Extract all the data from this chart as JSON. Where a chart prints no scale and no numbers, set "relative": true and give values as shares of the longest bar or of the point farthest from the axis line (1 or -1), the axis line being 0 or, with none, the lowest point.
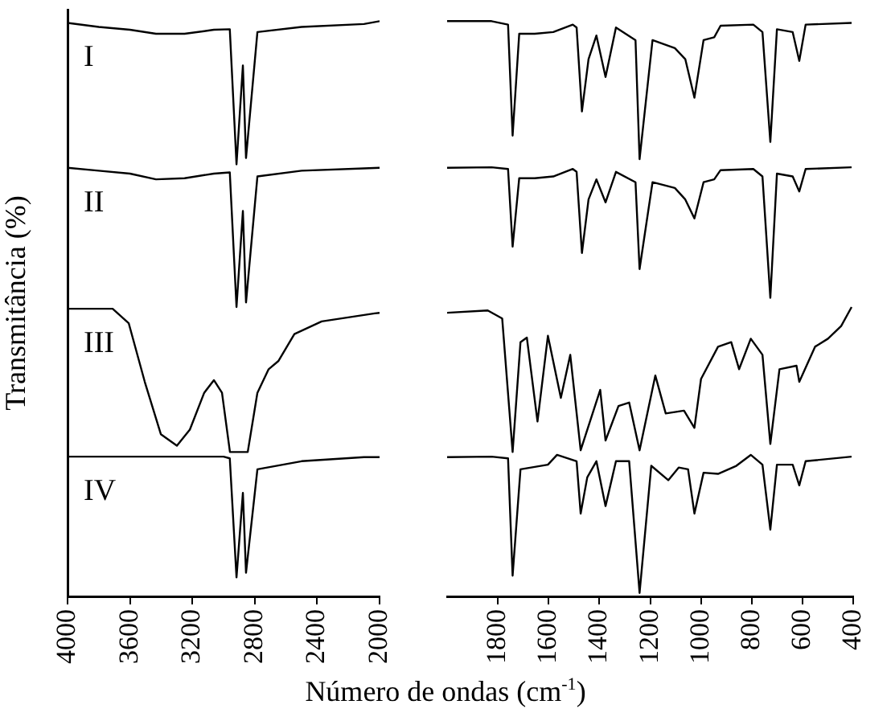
{
  "chart_data": [
    {
      "type": "line",
      "relative": true,
      "xlabel": "Número de ondas (cm$^{-1}$)",
      "ylabel": "Transmitância (%)",
      "xlim": [
        4000,
        2000
      ],
      "xticks": [
        4000,
        3600,
        3200,
        2800,
        2400,
        2000
      ],
      "marker": "none",
      "series": [
        {
          "name": "I",
          "color": "#000000",
          "x": [
            4000,
            3800,
            3600,
            3433,
            3250,
            3062,
            2960,
            2917,
            2876,
            2856,
            2783,
            2500,
            2100,
            2000
          ],
          "values": [
            0.997,
            0.99,
            0.985,
            0.978,
            0.978,
            0.985,
            0.986,
            0.751,
            0.923,
            0.762,
            0.981,
            0.99,
            0.995,
            1
          ]
        },
        {
          "name": "II",
          "color": "#000000",
          "x": [
            4000,
            3800,
            3600,
            3433,
            3250,
            3062,
            2960,
            2917,
            2876,
            2856,
            2783,
            2500,
            2100,
            2000
          ],
          "values": [
            0.745,
            0.74,
            0.735,
            0.725,
            0.727,
            0.735,
            0.737,
            0.503,
            0.67,
            0.511,
            0.73,
            0.74,
            0.744,
            0.745
          ]
        },
        {
          "name": "III",
          "color": "#000000",
          "x": [
            4000,
            3711,
            3608,
            3505,
            3402,
            3299,
            3216,
            3124,
            3062,
            3010,
            2959,
            2845,
            2783,
            2711,
            2649,
            2546,
            2371,
            2031,
            2000
          ],
          "values": [
            0.5,
            0.5,
            0.475,
            0.373,
            0.282,
            0.262,
            0.29,
            0.354,
            0.376,
            0.354,
            0.251,
            0.251,
            0.354,
            0.395,
            0.409,
            0.456,
            0.478,
            0.492,
            0.493
          ]
        },
        {
          "name": "IV",
          "color": "#000000",
          "x": [
            4000,
            3000,
            2960,
            2917,
            2876,
            2856,
            2783,
            2500,
            2100,
            2000
          ],
          "values": [
            0.243,
            0.243,
            0.24,
            0.033,
            0.18,
            0.041,
            0.221,
            0.235,
            0.242,
            0.242
          ]
        }
      ]
    },
    {
      "type": "line",
      "relative": true,
      "xlim": [
        2000,
        400
      ],
      "xticks": [
        1800,
        1600,
        1400,
        1200,
        1000,
        800,
        600,
        400
      ],
      "tick_labels": "x",
      "marker": "none",
      "series": [
        {
          "color": "#000000",
          "x": [
            2000,
            1825,
            1760,
            1742,
            1716,
            1655,
            1582,
            1505,
            1490,
            1469,
            1443,
            1412,
            1376,
            1335,
            1258,
            1242,
            1191,
            1103,
            1062,
            1026,
            990,
            948,
            923,
            794,
            758,
            727,
            701,
            639,
            613,
            588,
            407
          ],
          "values": [
            1,
            1,
            0.994,
            0.801,
            0.978,
            0.978,
            0.981,
            0.994,
            0.989,
            0.843,
            0.934,
            0.975,
            0.903,
            0.989,
            0.967,
            0.76,
            0.967,
            0.953,
            0.934,
            0.867,
            0.967,
            0.972,
            0.992,
            0.994,
            0.981,
            0.79,
            0.986,
            0.981,
            0.931,
            0.994,
            0.997
          ]
        },
        {
          "color": "#000000",
          "x": [
            2000,
            1825,
            1760,
            1742,
            1716,
            1655,
            1582,
            1505,
            1490,
            1469,
            1443,
            1412,
            1376,
            1335,
            1258,
            1242,
            1191,
            1103,
            1062,
            1026,
            990,
            948,
            923,
            794,
            758,
            727,
            701,
            639,
            613,
            588,
            407
          ],
          "values": [
            0.745,
            0.746,
            0.743,
            0.608,
            0.727,
            0.727,
            0.73,
            0.743,
            0.738,
            0.597,
            0.69,
            0.725,
            0.685,
            0.738,
            0.72,
            0.569,
            0.72,
            0.71,
            0.69,
            0.657,
            0.72,
            0.725,
            0.741,
            0.743,
            0.73,
            0.519,
            0.735,
            0.73,
            0.704,
            0.743,
            0.746
          ]
        },
        {
          "color": "#000000",
          "x": [
            2000,
            1840,
            1783,
            1742,
            1711,
            1686,
            1644,
            1603,
            1552,
            1515,
            1474,
            1397,
            1376,
            1325,
            1283,
            1242,
            1180,
            1139,
            1067,
            1026,
            1000,
            933,
            881,
            850,
            804,
            758,
            727,
            691,
            624,
            613,
            551,
            500,
            448,
            407
          ],
          "values": [
            0.493,
            0.497,
            0.483,
            0.251,
            0.442,
            0.45,
            0.304,
            0.453,
            0.345,
            0.42,
            0.254,
            0.359,
            0.271,
            0.331,
            0.337,
            0.254,
            0.384,
            0.318,
            0.323,
            0.293,
            0.378,
            0.434,
            0.442,
            0.395,
            0.448,
            0.42,
            0.265,
            0.395,
            0.401,
            0.373,
            0.434,
            0.448,
            0.47,
            0.503
          ]
        },
        {
          "color": "#000000",
          "x": [
            2000,
            1825,
            1760,
            1742,
            1711,
            1603,
            1567,
            1490,
            1474,
            1448,
            1412,
            1376,
            1335,
            1283,
            1242,
            1196,
            1129,
            1088,
            1051,
            1026,
            990,
            933,
            861,
            804,
            758,
            727,
            701,
            639,
            613,
            588,
            407
          ],
          "values": [
            0.242,
            0.243,
            0.24,
            0.036,
            0.221,
            0.229,
            0.246,
            0.235,
            0.144,
            0.207,
            0.235,
            0.157,
            0.235,
            0.235,
            0.006,
            0.227,
            0.202,
            0.224,
            0.221,
            0.144,
            0.215,
            0.213,
            0.227,
            0.246,
            0.229,
            0.116,
            0.229,
            0.229,
            0.193,
            0.235,
            0.243
          ]
        }
      ]
    }
  ]
}
